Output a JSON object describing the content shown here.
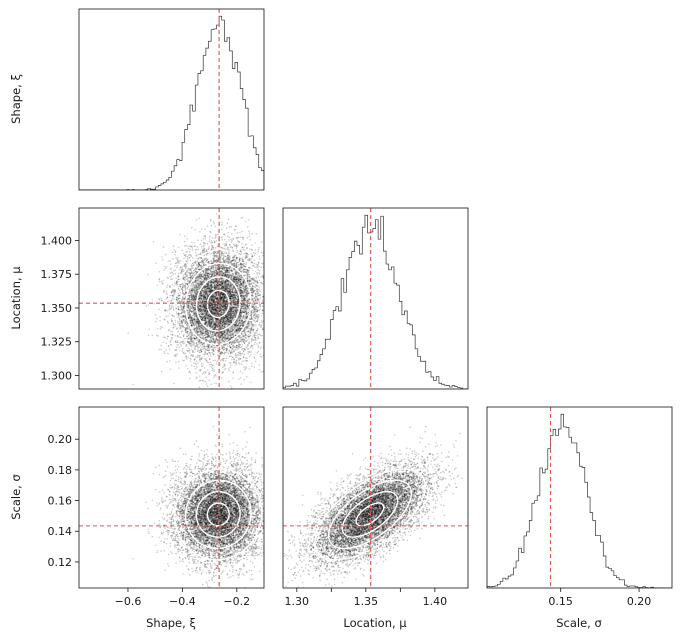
{
  "chart_data": {
    "type": "corner",
    "parameters": [
      {
        "key": "shape",
        "label": "Shape, ξ",
        "range": [
          -0.78,
          -0.1
        ],
        "ticks": [
          -0.6,
          -0.4,
          -0.2
        ],
        "tick_labels": [
          "−0.6",
          "−0.4",
          "−0.2"
        ],
        "truth": -0.265,
        "mean": -0.268,
        "sd": 0.08
      },
      {
        "key": "location",
        "label": "Location, μ",
        "range": [
          1.29,
          1.424
        ],
        "ticks": [
          1.3,
          1.325,
          1.35,
          1.375,
          1.4
        ],
        "tick_labels": [
          "1.300",
          "1.325",
          "1.350",
          "1.375",
          "1.400"
        ],
        "x_tick_labels": [
          "1.30",
          "",
          "1.35",
          "",
          "1.40"
        ],
        "truth": 1.3535,
        "mean": 1.353,
        "sd": 0.02
      },
      {
        "key": "scale",
        "label": "Scale, σ",
        "range": [
          0.103,
          0.221
        ],
        "ticks": [
          0.12,
          0.14,
          0.16,
          0.18,
          0.2
        ],
        "tick_labels": [
          "0.12",
          "0.14",
          "0.16",
          "0.18",
          "0.20"
        ],
        "x_ticks": [
          0.15,
          0.2
        ],
        "x_tick_labels": [
          "0.15",
          "0.20"
        ],
        "truth": 0.1435,
        "mean": 0.151,
        "sd": 0.0148
      }
    ],
    "correlations": {
      "shape_location": 0.05,
      "shape_scale": 0.03,
      "location_scale": 0.62
    },
    "histogram_bins": 70,
    "truth_line_color": "#e8534a",
    "contour_color": "#ffffff",
    "scatter_color": "#000000",
    "histogram_color": "#333333"
  }
}
